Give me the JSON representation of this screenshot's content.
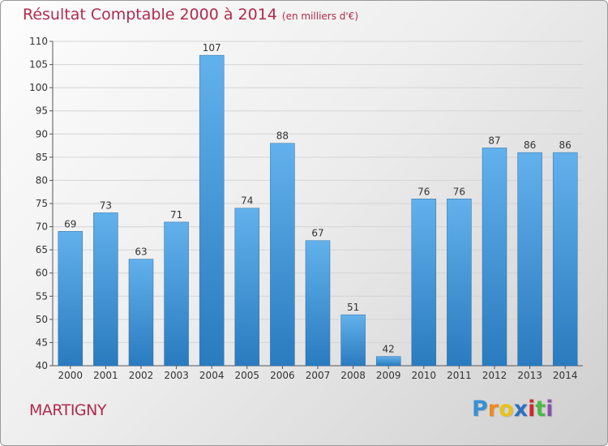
{
  "title": "Résultat Comptable 2000 à 2014",
  "unit_note": "(en milliers d'€)",
  "commune": "MARTIGNY",
  "logo": {
    "letters": [
      "P",
      "r",
      "o",
      "x",
      "i",
      "t",
      "i"
    ],
    "colors": [
      "#3a8fd4",
      "#f08a1c",
      "#e8c21a",
      "#2e6fc0",
      "#d2262a",
      "#4db848",
      "#8a4fb0"
    ]
  },
  "colors": {
    "title": "#b02a4e",
    "bar_top": "#62b1ec",
    "bar_bottom": "#2a7bbf",
    "grid": "#d4d4d4",
    "axis_text": "#333333"
  },
  "chart_data": {
    "type": "bar",
    "title": "Résultat Comptable 2000 à 2014",
    "subtitle": "(en milliers d'€)",
    "xlabel": "",
    "ylabel": "",
    "categories": [
      "2000",
      "2001",
      "2002",
      "2003",
      "2004",
      "2005",
      "2006",
      "2007",
      "2008",
      "2009",
      "2010",
      "2011",
      "2012",
      "2013",
      "2014"
    ],
    "values": [
      69,
      73,
      63,
      71,
      107,
      74,
      88,
      67,
      51,
      42,
      76,
      76,
      87,
      86,
      86
    ],
    "ylim": [
      40,
      110
    ],
    "yticks": [
      40,
      45,
      50,
      55,
      60,
      65,
      70,
      75,
      80,
      85,
      90,
      95,
      100,
      105,
      110
    ],
    "grid": true
  }
}
